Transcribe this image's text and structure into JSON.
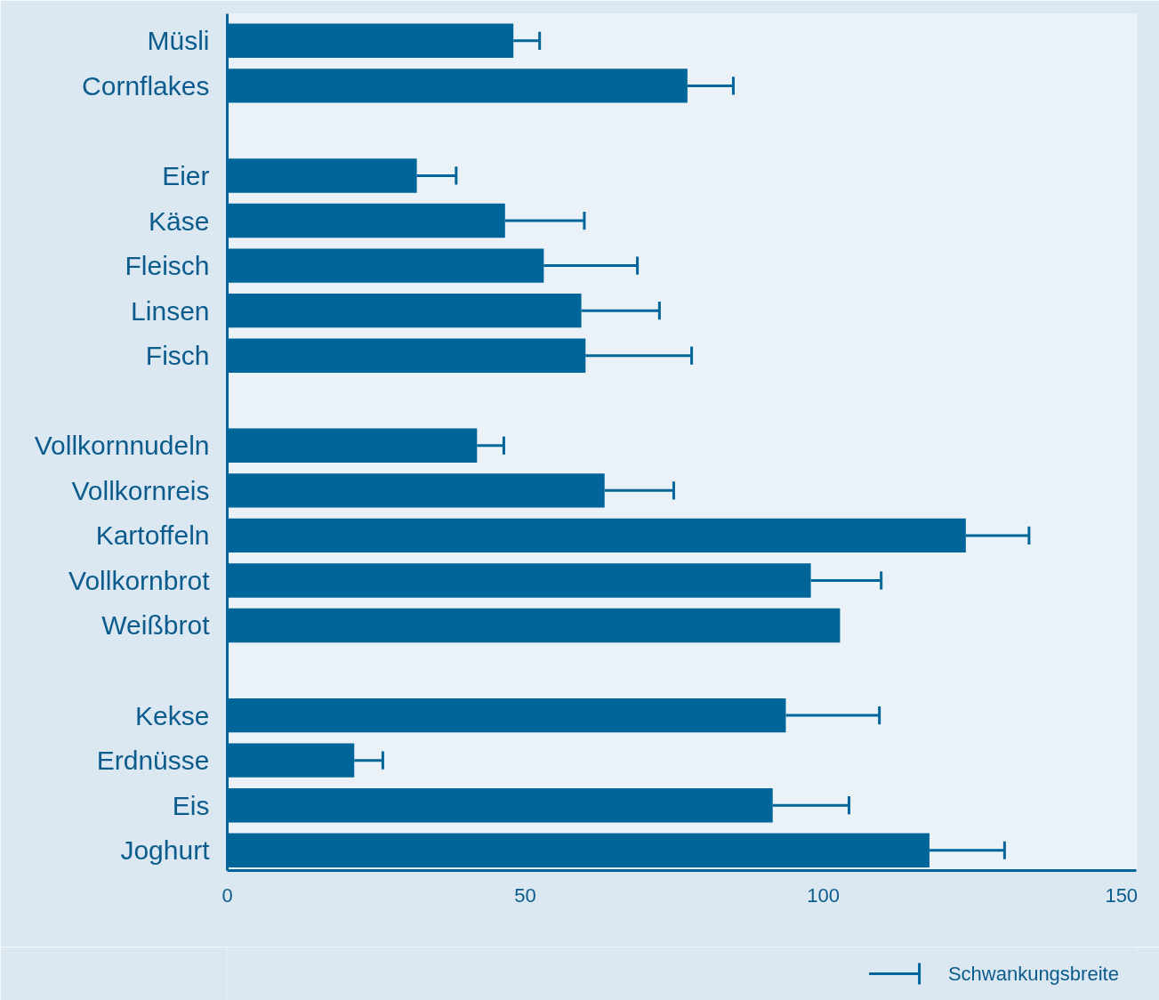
{
  "chart_data": {
    "type": "bar",
    "orientation": "horizontal",
    "categories": [
      "Müsli",
      "Cornflakes",
      null,
      "Eier",
      "Käse",
      "Fleisch",
      "Linsen",
      "Fisch",
      null,
      "Vollkornnudeln",
      "Vollkornreis",
      "Kartoffeln",
      "Vollkornbrot",
      "Weißbrot",
      null,
      "Kekse",
      "Erdnüsse",
      "Eis",
      "Joghurt"
    ],
    "values": [
      48,
      77.2,
      null,
      31.8,
      46.6,
      53.1,
      59.4,
      60.1,
      null,
      41.9,
      63.3,
      123.9,
      97.9,
      102.8,
      null,
      93.7,
      21.3,
      91.5,
      117.8
    ],
    "errors": [
      [
        48,
        52.4
      ],
      [
        77.2,
        84.9
      ],
      null,
      [
        31.8,
        38.4
      ],
      [
        46.6,
        59.9
      ],
      [
        53.1,
        68.8
      ],
      [
        59.4,
        72.5
      ],
      [
        60.1,
        77.9
      ],
      null,
      [
        41.9,
        46.4
      ],
      [
        63.3,
        74.9
      ],
      [
        123.9,
        134.5
      ],
      [
        97.9,
        109.7
      ],
      null,
      null,
      [
        93.7,
        109.4
      ],
      [
        21.3,
        26.1
      ],
      [
        91.5,
        104.3
      ],
      [
        117.8,
        130.4
      ]
    ],
    "color": "#006699",
    "xlim": [
      0,
      152.5
    ],
    "xticks": [
      0,
      50,
      100,
      150
    ],
    "annotations": [
      "Schwankungsbreite"
    ]
  }
}
